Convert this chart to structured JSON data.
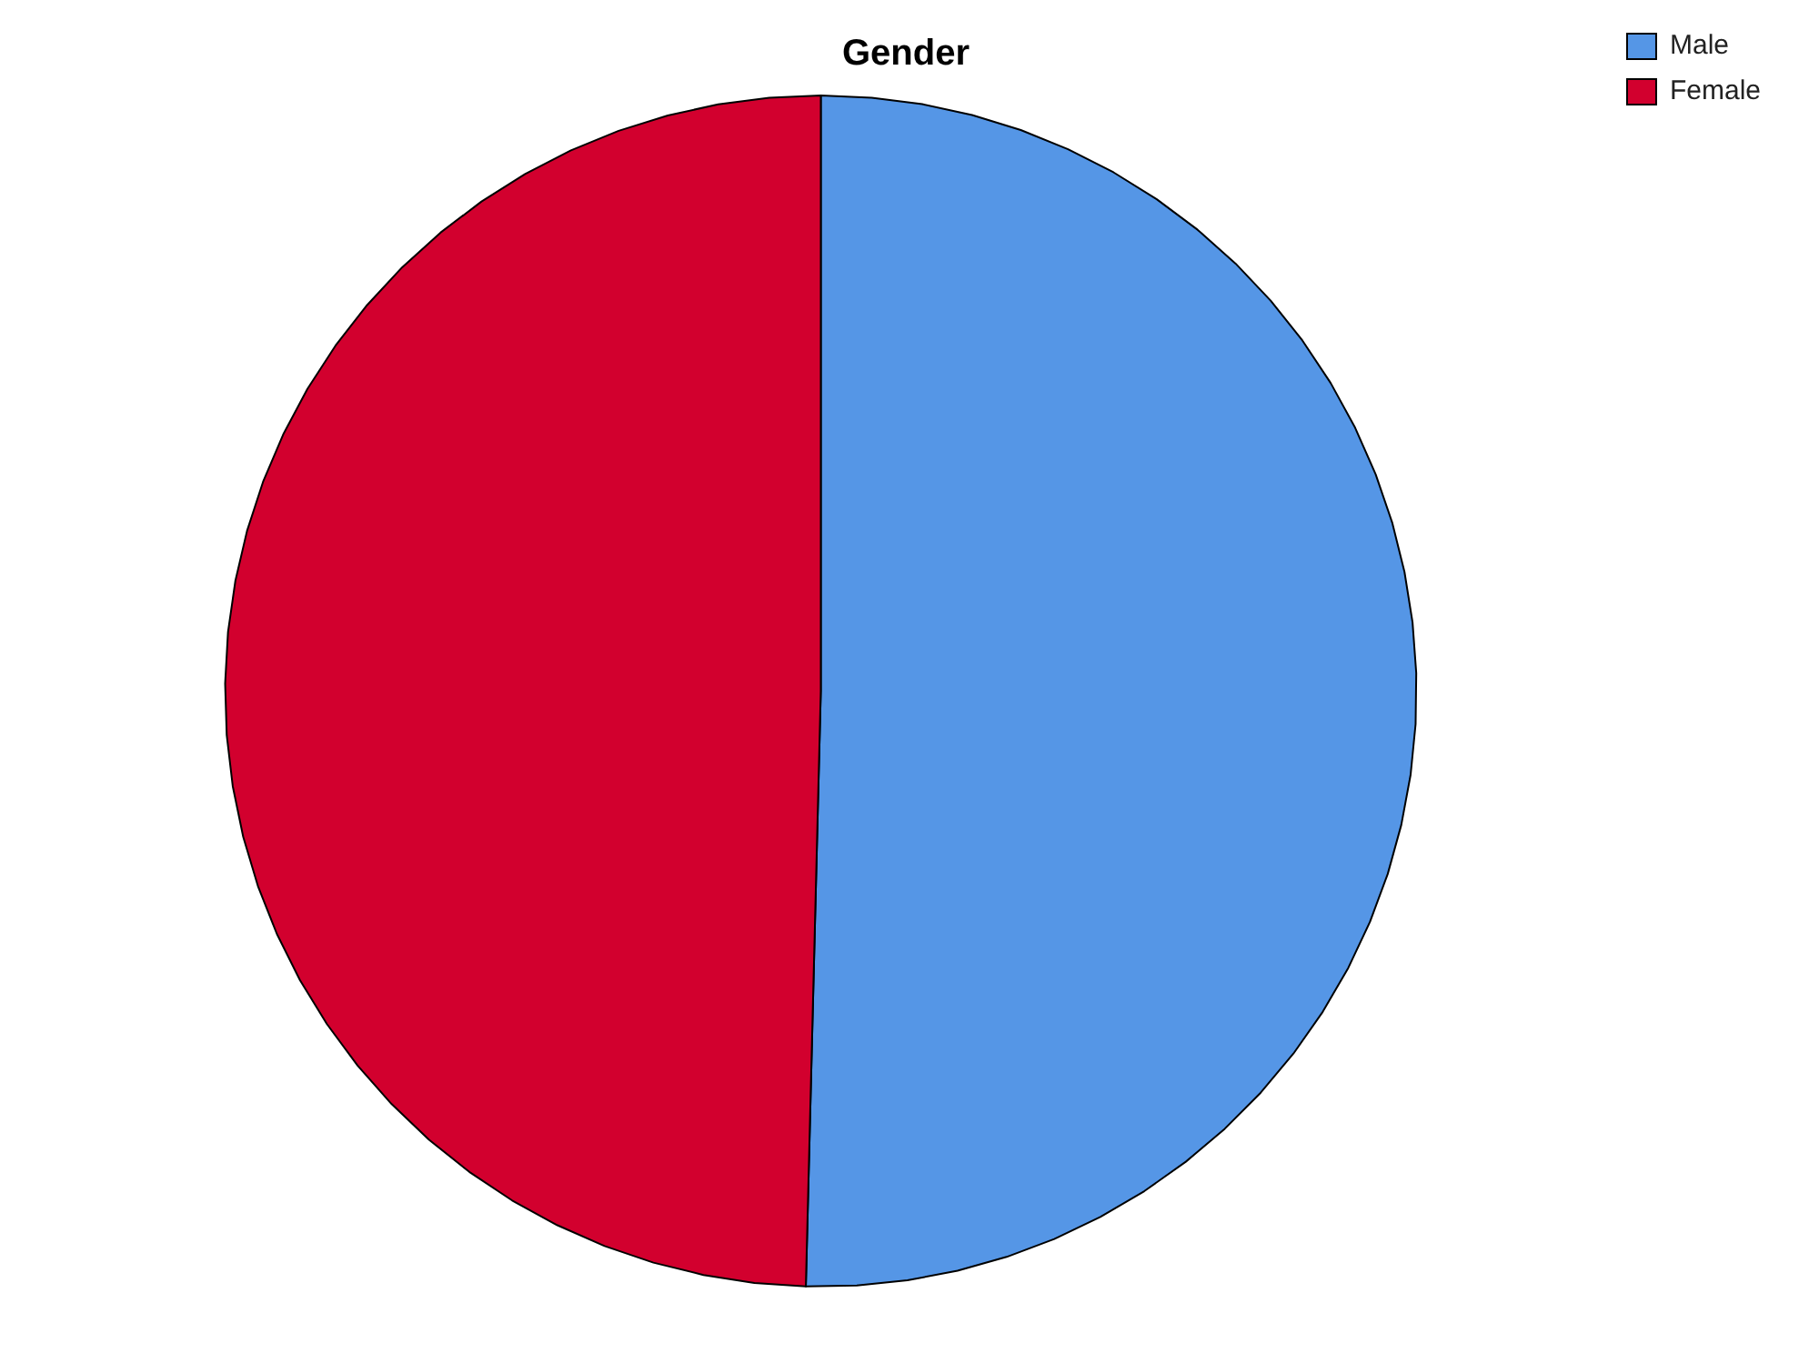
{
  "chart_data": {
    "type": "pie",
    "title": "Gender",
    "categories": [
      "Male",
      "Female"
    ],
    "values": [
      50.4,
      49.6
    ],
    "colors": [
      "#5596e6",
      "#d2002e"
    ],
    "legend": "top right"
  }
}
